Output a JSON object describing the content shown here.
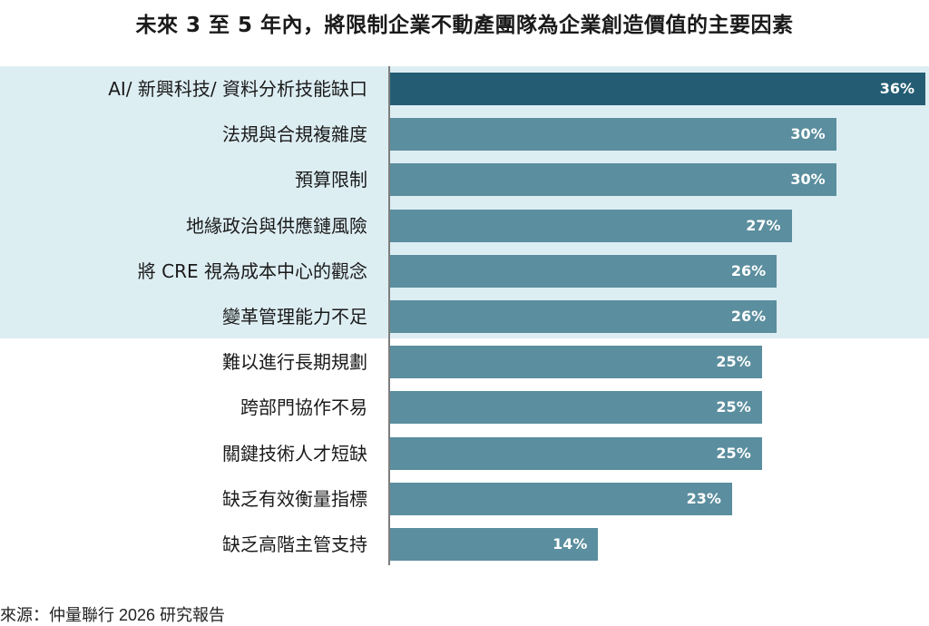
{
  "chart_data": {
    "type": "bar",
    "orientation": "horizontal",
    "title": "未來 3 至 5 年內，將限制企業不動產團隊為企業創造價值的主要因素",
    "categories": [
      "AI/ 新興科技/ 資料分析技能缺口",
      "法規與合規複雜度",
      "預算限制",
      "地緣政治與供應鏈風險",
      "將 CRE 視為成本中心的觀念",
      "變革管理能力不足",
      "難以進行長期規劃",
      "跨部門協作不易",
      "關鍵技術人才短缺",
      "缺乏有效衡量指標",
      "缺乏高階主管支持"
    ],
    "values": [
      36,
      30,
      30,
      27,
      26,
      26,
      25,
      25,
      25,
      23,
      14
    ],
    "value_labels": [
      "36%",
      "30%",
      "30%",
      "27%",
      "26%",
      "26%",
      "25%",
      "25%",
      "25%",
      "23%",
      "14%"
    ],
    "unit": "%",
    "xlim": [
      0,
      36
    ],
    "highlighted_count": 6,
    "grid": false,
    "colors": {
      "top_bar": "#245d73",
      "bar": "#5b8e9e",
      "highlight_band": "#ddeef3",
      "value_text": "#ffffff"
    }
  },
  "source": "來源：仲量聯行 2026 研究報告"
}
